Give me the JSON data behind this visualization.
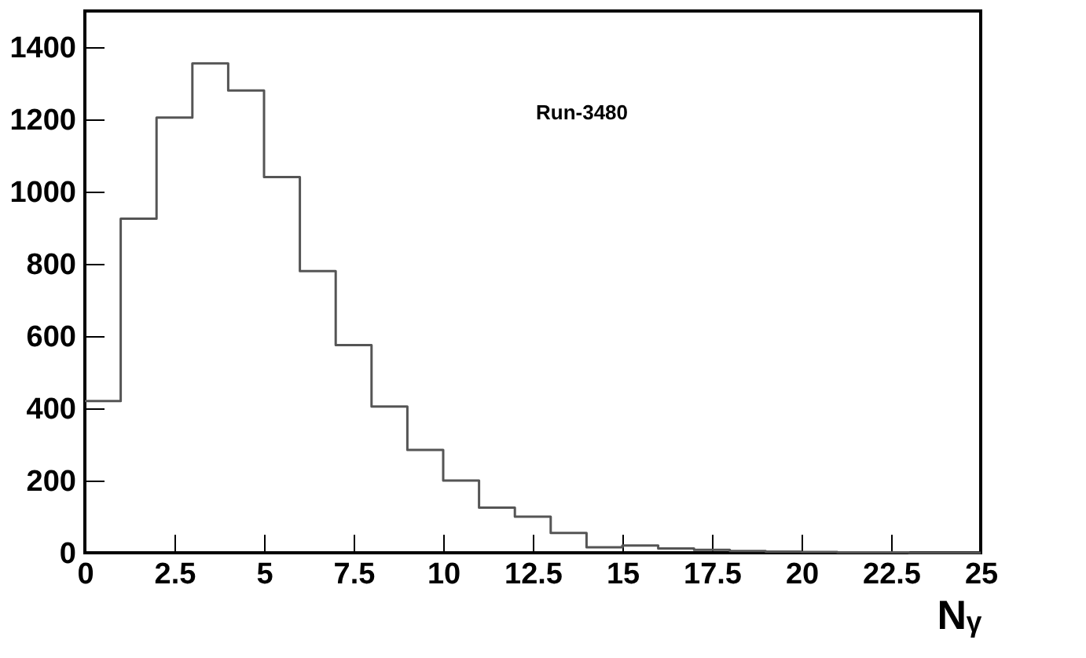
{
  "chart_data": {
    "type": "histogram",
    "xlabel": "Nᵧ",
    "annotations": [
      "Run-3480"
    ],
    "bins": [
      0,
      1,
      2,
      3,
      4,
      5,
      6,
      7,
      8,
      9,
      10,
      11,
      12,
      13,
      14,
      15,
      16,
      17,
      18,
      19,
      20,
      21,
      22,
      23,
      24,
      25
    ],
    "values": [
      420,
      925,
      1205,
      1355,
      1280,
      1040,
      780,
      575,
      405,
      285,
      200,
      125,
      100,
      55,
      15,
      20,
      12,
      8,
      5,
      3,
      2,
      1,
      1,
      0,
      0
    ],
    "color": "#555555",
    "xlim": [
      0,
      25
    ],
    "xticks": [
      0,
      2.5,
      5,
      7.5,
      10,
      12.5,
      15,
      17.5,
      20,
      22.5,
      25
    ],
    "ylim": [
      0,
      1500
    ],
    "yticks": [
      0,
      200,
      400,
      600,
      800,
      1000,
      1200,
      1400
    ],
    "grid": false
  }
}
